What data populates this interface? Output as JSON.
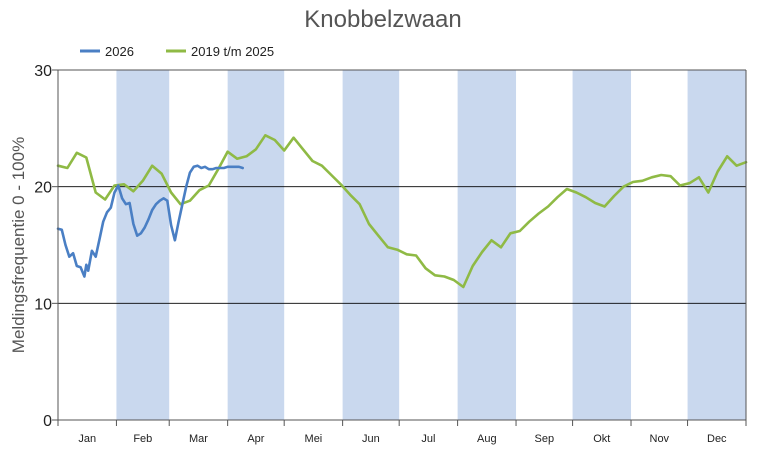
{
  "chart_data": {
    "type": "line",
    "title": "Knobbelzwaan",
    "ylabel": "Meldingsfrequentie 0 - 100%",
    "ylim": [
      0,
      30
    ],
    "yticks": [
      0,
      10,
      20,
      30
    ],
    "xlim": [
      0,
      365
    ],
    "months": [
      "Jan",
      "Feb",
      "Mar",
      "Apr",
      "Mei",
      "Jun",
      "Jul",
      "Aug",
      "Sep",
      "Okt",
      "Nov",
      "Dec"
    ],
    "shaded_months": [
      "Feb",
      "Apr",
      "Jun",
      "Aug",
      "Okt",
      "Dec"
    ],
    "grid": true,
    "legend_position": "top-left",
    "colors": {
      "shade": "#c9d8ee",
      "grid": "#000000",
      "axis": "#555555",
      "title": "#555555"
    },
    "series": [
      {
        "name": "2026",
        "color": "#4a7fc4",
        "x": [
          0,
          2,
          4,
          6,
          8,
          10,
          12,
          14,
          15,
          16,
          18,
          20,
          22,
          24,
          26,
          28,
          30,
          32,
          34,
          36,
          38,
          40,
          42,
          44,
          46,
          48,
          50,
          52,
          54,
          56,
          58,
          60,
          62,
          64,
          66,
          68,
          70,
          72,
          74,
          76,
          78,
          80,
          82,
          84,
          86,
          88,
          90,
          92,
          94,
          96,
          98
        ],
        "y": [
          16.4,
          16.3,
          15.0,
          14.0,
          14.3,
          13.2,
          13.1,
          12.3,
          13.3,
          12.8,
          14.5,
          14.0,
          15.5,
          17.0,
          17.8,
          18.2,
          19.5,
          20.1,
          19.0,
          18.5,
          18.6,
          16.8,
          15.8,
          16.0,
          16.5,
          17.2,
          18.0,
          18.5,
          18.8,
          19.0,
          18.8,
          16.7,
          15.4,
          17.0,
          18.5,
          20.0,
          21.2,
          21.7,
          21.8,
          21.6,
          21.7,
          21.5,
          21.5,
          21.6,
          21.6,
          21.6,
          21.7,
          21.7,
          21.7,
          21.7,
          21.6
        ]
      },
      {
        "name": "2019 t/m 2025",
        "color": "#8fba45",
        "x": [
          0,
          5,
          10,
          15,
          20,
          25,
          30,
          35,
          40,
          45,
          50,
          55,
          60,
          65,
          70,
          75,
          80,
          85,
          90,
          95,
          100,
          105,
          110,
          115,
          120,
          125,
          130,
          135,
          140,
          145,
          150,
          155,
          160,
          165,
          170,
          175,
          180,
          185,
          190,
          195,
          200,
          205,
          210,
          215,
          220,
          225,
          230,
          235,
          240,
          245,
          250,
          255,
          260,
          265,
          270,
          275,
          280,
          285,
          290,
          295,
          300,
          305,
          310,
          315,
          320,
          325,
          330,
          335,
          340,
          345,
          350,
          355,
          360,
          365
        ],
        "y": [
          21.8,
          21.6,
          22.9,
          22.5,
          19.5,
          18.9,
          20.1,
          20.2,
          19.6,
          20.5,
          21.8,
          21.1,
          19.5,
          18.5,
          18.8,
          19.7,
          20.1,
          21.5,
          23.0,
          22.4,
          22.6,
          23.2,
          24.4,
          24.0,
          23.1,
          24.2,
          23.2,
          22.2,
          21.8,
          21.0,
          20.2,
          19.3,
          18.5,
          16.8,
          15.8,
          14.8,
          14.6,
          14.2,
          14.1,
          13.0,
          12.4,
          12.3,
          12.0,
          11.4,
          13.2,
          14.4,
          15.4,
          14.8,
          16.0,
          16.2,
          17.0,
          17.7,
          18.3,
          19.1,
          19.8,
          19.5,
          19.1,
          18.6,
          18.3,
          19.2,
          20.0,
          20.4,
          20.5,
          20.8,
          21.0,
          20.9,
          20.1,
          20.3,
          20.8,
          19.5,
          21.3,
          22.6,
          21.8,
          22.1
        ]
      }
    ]
  }
}
